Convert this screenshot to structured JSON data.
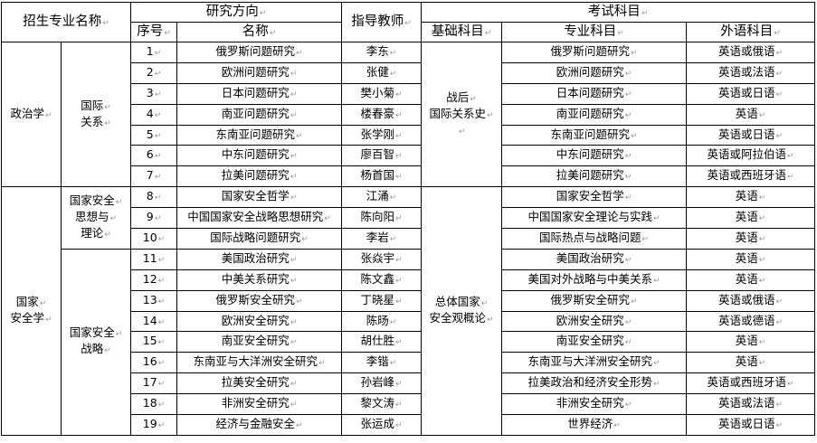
{
  "header": {
    "major": "招生专业名称",
    "direction": "研究方向",
    "seq": "序号",
    "name": "名称",
    "advisor": "指导教师",
    "exam": "考试科目",
    "basic": "基础科目",
    "professional": "专业科目",
    "foreign": "外语科目"
  },
  "groups": [
    {
      "major": [
        "政治学"
      ],
      "sub": [
        {
          "name": [
            "国际",
            "关系"
          ],
          "count": 7
        }
      ],
      "basic": [
        "战后",
        "国际关系史",
        ""
      ],
      "count": 7
    },
    {
      "major": [
        "国家",
        "安全学"
      ],
      "sub": [
        {
          "name": [
            "国家安全",
            "思想与",
            "理论"
          ],
          "count": 3
        },
        {
          "name": [
            "国家安全",
            "战略"
          ],
          "count": 9
        }
      ],
      "basic": [
        "总体国家",
        "安全观概论"
      ],
      "count": 12
    }
  ],
  "rows": [
    {
      "seq": "1",
      "name": "俄罗斯问题研究",
      "advisor": "李东",
      "professional": "俄罗斯问题研究",
      "foreign": "英语或俄语"
    },
    {
      "seq": "2",
      "name": "欧洲问题研究",
      "advisor": "张健",
      "professional": "欧洲问题研究",
      "foreign": "英语或法语"
    },
    {
      "seq": "3",
      "name": "日本问题研究",
      "advisor": "樊小菊",
      "professional": "日本问题研究",
      "foreign": "英语或日语"
    },
    {
      "seq": "4",
      "name": "南亚问题研究",
      "advisor": "楼春豪",
      "professional": "南亚问题研究",
      "foreign": "英语"
    },
    {
      "seq": "5",
      "name": "东南亚问题研究",
      "advisor": "张学刚",
      "professional": "东南亚问题研究",
      "foreign": "英语或日语"
    },
    {
      "seq": "6",
      "name": "中东问题研究",
      "advisor": "廖百智",
      "professional": "中东问题研究",
      "foreign": "英语或阿拉伯语"
    },
    {
      "seq": "7",
      "name": "拉美问题研究",
      "advisor": "杨首国",
      "professional": "拉美问题研究",
      "foreign": "英语或西班牙语"
    },
    {
      "seq": "8",
      "name": "国家安全哲学",
      "advisor": "江涌",
      "professional": "国家安全哲学",
      "foreign": "英语"
    },
    {
      "seq": "9",
      "name": "中国国家安全战略思想研究",
      "advisor": "陈向阳",
      "professional": "中国国家安全理论与实践",
      "foreign": "英语"
    },
    {
      "seq": "10",
      "name": "国际战略问题研究",
      "advisor": "李岩",
      "professional": "国际热点与战略问题",
      "foreign": "英语"
    },
    {
      "seq": "11",
      "name": "美国政治研究",
      "advisor": "张焱宇",
      "professional": "美国政治研究",
      "foreign": "英语"
    },
    {
      "seq": "12",
      "name": "中美关系研究",
      "advisor": "陈文鑫",
      "professional": "美国对外战略与中美关系",
      "foreign": "英语"
    },
    {
      "seq": "13",
      "name": "俄罗斯安全研究",
      "advisor": "丁晓星",
      "professional": "俄罗斯安全研究",
      "foreign": "英语或俄语"
    },
    {
      "seq": "14",
      "name": "欧洲安全研究",
      "advisor": "陈旸",
      "professional": "欧洲安全研究",
      "foreign": "英语或德语"
    },
    {
      "seq": "15",
      "name": "南亚安全研究",
      "advisor": "胡仕胜",
      "professional": "南亚安全研究",
      "foreign": "英语"
    },
    {
      "seq": "16",
      "name": "东南亚与大洋洲安全研究",
      "advisor": "李锴",
      "professional": "东南亚与大洋洲安全研究",
      "foreign": "英语"
    },
    {
      "seq": "17",
      "name": "拉美安全研究",
      "advisor": "孙岩峰",
      "professional": "拉美政治和经济安全形势",
      "foreign": "英语或西班牙语"
    },
    {
      "seq": "18",
      "name": "非洲安全研究",
      "advisor": "黎文涛",
      "professional": "非洲安全研究",
      "foreign": "英语或法语"
    },
    {
      "seq": "19",
      "name": "经济与金融安全",
      "advisor": "张运成",
      "professional": "世界经济",
      "foreign": "英语或日语"
    }
  ]
}
